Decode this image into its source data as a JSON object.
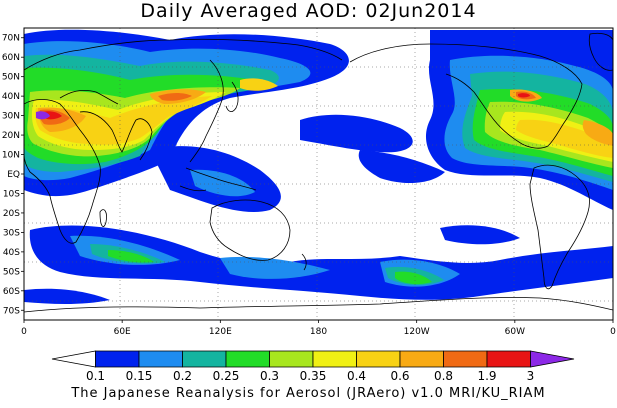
{
  "title": "Daily Averaged AOD: 02Jun2014",
  "footer": "The Japanese Reanalysis for Aerosol (JRAero) v1.0 MRI/KU_RIAM",
  "map": {
    "lon_range": [
      0,
      360
    ],
    "lat_range": [
      -75,
      75
    ],
    "lat_labels": [
      "70N",
      "60N",
      "50N",
      "40N",
      "30N",
      "20N",
      "10N",
      "EQ",
      "10S",
      "20S",
      "30S",
      "40S",
      "50S",
      "60S",
      "70S"
    ],
    "lon_labels": [
      "0",
      "60E",
      "120E",
      "180",
      "120W",
      "60W",
      "0"
    ],
    "grid": "dotted"
  },
  "colorbar": {
    "levels": [
      "0.1",
      "0.15",
      "0.2",
      "0.25",
      "0.3",
      "0.35",
      "0.4",
      "0.6",
      "0.8",
      "1.9",
      "3"
    ],
    "colors": [
      "#ffffff",
      "#0022ee",
      "#1e8cf0",
      "#14b4a0",
      "#22dc28",
      "#a8e61e",
      "#f0f014",
      "#f8d214",
      "#f8aa14",
      "#f06a14",
      "#e81414",
      "#8c28e6"
    ]
  }
}
